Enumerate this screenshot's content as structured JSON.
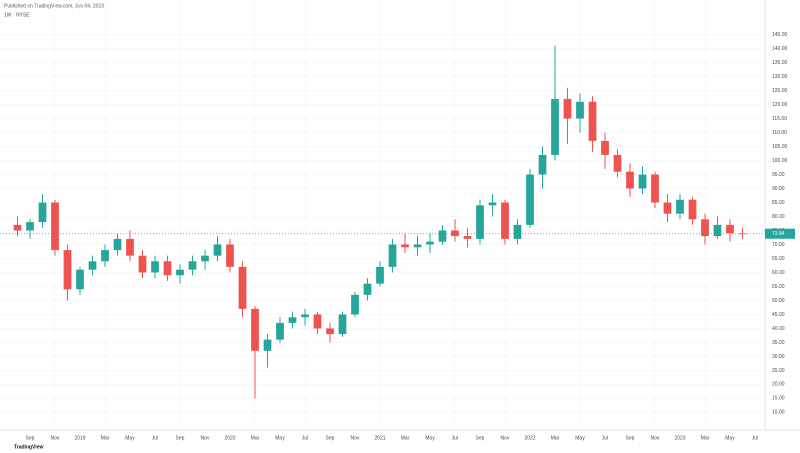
{
  "chart_data": {
    "type": "candlestick",
    "title": "Published on TradingView.com, Jun 04, 2023",
    "legend_text": "1W · NYSE",
    "brand": "TradingView",
    "x": [
      "2018-08",
      "2018-09",
      "2018-10",
      "2018-11",
      "2018-12",
      "2019-01",
      "2019-02",
      "2019-03",
      "2019-04",
      "2019-05",
      "2019-06",
      "2019-07",
      "2019-08",
      "2019-09",
      "2019-10",
      "2019-11",
      "2019-12",
      "2020-01",
      "2020-02",
      "2020-03",
      "2020-04",
      "2020-05",
      "2020-06",
      "2020-07",
      "2020-08",
      "2020-09",
      "2020-10",
      "2020-11",
      "2020-12",
      "2021-01",
      "2021-02",
      "2021-03",
      "2021-04",
      "2021-05",
      "2021-06",
      "2021-07",
      "2021-08",
      "2021-09",
      "2021-10",
      "2021-11",
      "2021-12",
      "2022-01",
      "2022-02",
      "2022-03",
      "2022-04",
      "2022-05",
      "2022-06",
      "2022-07",
      "2022-08",
      "2022-09",
      "2022-10",
      "2022-11",
      "2022-12",
      "2023-01",
      "2023-02",
      "2023-03",
      "2023-04",
      "2023-05",
      "2023-06"
    ],
    "open": [
      77,
      75,
      78,
      85,
      68,
      54,
      61,
      64,
      68,
      72,
      66,
      60,
      64,
      59,
      61,
      64,
      66,
      70,
      62,
      47,
      32,
      36,
      42,
      44,
      45,
      40,
      38,
      45,
      52,
      56,
      62,
      70,
      69,
      70,
      71,
      75,
      73,
      72,
      84,
      85,
      72,
      77,
      95,
      102,
      122,
      115,
      121,
      107,
      102,
      96,
      90,
      95,
      85,
      81,
      86,
      79,
      73,
      77,
      74
    ],
    "high": [
      80,
      79,
      88,
      86,
      70,
      62,
      66,
      70,
      74,
      75,
      68,
      66,
      66,
      63,
      66,
      68,
      73,
      72,
      64,
      48,
      38,
      44,
      46,
      47,
      46,
      42,
      46,
      53,
      58,
      64,
      72,
      74,
      73,
      74,
      77,
      79,
      76,
      86,
      88,
      86,
      79,
      97,
      105,
      141,
      126,
      124,
      123,
      110,
      104,
      99,
      98,
      96,
      88,
      88,
      87,
      81,
      80,
      79,
      76
    ],
    "low": [
      73,
      72,
      76,
      66,
      50,
      52,
      59,
      62,
      66,
      64,
      58,
      58,
      57,
      56,
      59,
      61,
      64,
      60,
      44,
      15,
      26,
      35,
      40,
      41,
      38,
      35,
      37,
      44,
      50,
      55,
      60,
      67,
      66,
      67,
      70,
      71,
      69,
      70,
      80,
      70,
      70,
      76,
      90,
      100,
      106,
      110,
      103,
      97,
      94,
      87,
      88,
      83,
      78,
      79,
      77,
      70,
      72,
      71,
      72
    ],
    "close": [
      75,
      78,
      85,
      68,
      54,
      61,
      64,
      68,
      72,
      66,
      60,
      64,
      59,
      61,
      64,
      66,
      70,
      62,
      47,
      32,
      36,
      42,
      44,
      45,
      40,
      38,
      45,
      52,
      56,
      62,
      70,
      69,
      70,
      71,
      75,
      73,
      72,
      84,
      85,
      72,
      77,
      95,
      102,
      122,
      115,
      121,
      107,
      102,
      96,
      90,
      95,
      85,
      81,
      86,
      79,
      73,
      77,
      74,
      73.84
    ],
    "up_color": "#26a69a",
    "down_color": "#ef5350",
    "last_price_label": "73.84",
    "xlim": [
      "2018-07",
      "2023-08"
    ],
    "xticks": [
      {
        "value": "2018-09",
        "label": "Sep"
      },
      {
        "value": "2018-11",
        "label": "Nov"
      },
      {
        "value": "2019-01",
        "label": "2019"
      },
      {
        "value": "2019-03",
        "label": "Mar"
      },
      {
        "value": "2019-05",
        "label": "May"
      },
      {
        "value": "2019-07",
        "label": "Jul"
      },
      {
        "value": "2019-09",
        "label": "Sep"
      },
      {
        "value": "2019-11",
        "label": "Nov"
      },
      {
        "value": "2020-01",
        "label": "2020"
      },
      {
        "value": "2020-03",
        "label": "Mar"
      },
      {
        "value": "2020-05",
        "label": "May"
      },
      {
        "value": "2020-07",
        "label": "Jul"
      },
      {
        "value": "2020-09",
        "label": "Sep"
      },
      {
        "value": "2020-11",
        "label": "Nov"
      },
      {
        "value": "2021-01",
        "label": "2021"
      },
      {
        "value": "2021-03",
        "label": "Mar"
      },
      {
        "value": "2021-05",
        "label": "May"
      },
      {
        "value": "2021-07",
        "label": "Jul"
      },
      {
        "value": "2021-09",
        "label": "Sep"
      },
      {
        "value": "2021-11",
        "label": "Nov"
      },
      {
        "value": "2022-01",
        "label": "2022"
      },
      {
        "value": "2022-03",
        "label": "Mar"
      },
      {
        "value": "2022-05",
        "label": "May"
      },
      {
        "value": "2022-07",
        "label": "Jul"
      },
      {
        "value": "2022-09",
        "label": "Sep"
      },
      {
        "value": "2022-11",
        "label": "Nov"
      },
      {
        "value": "2023-01",
        "label": "2023"
      },
      {
        "value": "2023-03",
        "label": "Mar"
      },
      {
        "value": "2023-05",
        "label": "May"
      },
      {
        "value": "2023-07",
        "label": "Jul"
      }
    ],
    "ylim": [
      5.5,
      154.5
    ],
    "yticks": [
      {
        "value": 10,
        "label": "10.00"
      },
      {
        "value": 15,
        "label": "15.00"
      },
      {
        "value": 20,
        "label": "20.00"
      },
      {
        "value": 25,
        "label": "25.00"
      },
      {
        "value": 30,
        "label": "30.00"
      },
      {
        "value": 35,
        "label": "35.00"
      },
      {
        "value": 40,
        "label": "40.00"
      },
      {
        "value": 45,
        "label": "45.00"
      },
      {
        "value": 50,
        "label": "50.00"
      },
      {
        "value": 55,
        "label": "55.00"
      },
      {
        "value": 60,
        "label": "60.00"
      },
      {
        "value": 65,
        "label": "65.00"
      },
      {
        "value": 70,
        "label": "70.00"
      },
      {
        "value": 75,
        "label": "75.00"
      },
      {
        "value": 80,
        "label": "80.00"
      },
      {
        "value": 85,
        "label": "85.00"
      },
      {
        "value": 90,
        "label": "90.00"
      },
      {
        "value": 95,
        "label": "95.00"
      },
      {
        "value": 100,
        "label": "100.00"
      },
      {
        "value": 105,
        "label": "105.00"
      },
      {
        "value": 110,
        "label": "110.00"
      },
      {
        "value": 115,
        "label": "115.00"
      },
      {
        "value": 120,
        "label": "120.00"
      },
      {
        "value": 125,
        "label": "125.00"
      },
      {
        "value": 130,
        "label": "130.00"
      },
      {
        "value": 135,
        "label": "135.00"
      },
      {
        "value": 140,
        "label": "140.00"
      },
      {
        "value": 145,
        "label": "145.00"
      }
    ],
    "grid": true
  }
}
